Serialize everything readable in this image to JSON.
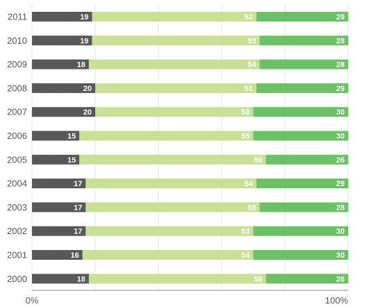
{
  "chart_data": {
    "type": "bar",
    "orientation": "horizontal",
    "stacked": "percent",
    "title": "",
    "xlabel": "",
    "ylabel": "",
    "categories": [
      "2011",
      "2010",
      "2009",
      "2008",
      "2007",
      "2006",
      "2005",
      "2004",
      "2003",
      "2002",
      "2001",
      "2000"
    ],
    "series": [
      {
        "color": "#5a5a5a",
        "values": [
          19,
          19,
          18,
          20,
          20,
          15,
          15,
          17,
          17,
          17,
          16,
          18
        ]
      },
      {
        "color": "#c8e196",
        "values": [
          52,
          53,
          54,
          51,
          50,
          55,
          59,
          54,
          55,
          53,
          54,
          56
        ]
      },
      {
        "color": "#6cc066",
        "values": [
          29,
          28,
          28,
          29,
          30,
          30,
          26,
          29,
          28,
          30,
          30,
          26
        ]
      }
    ],
    "xlim": [
      0,
      100
    ],
    "x_tick_labels": [
      "0%",
      "100%"
    ],
    "grid": true,
    "legend": "none"
  }
}
